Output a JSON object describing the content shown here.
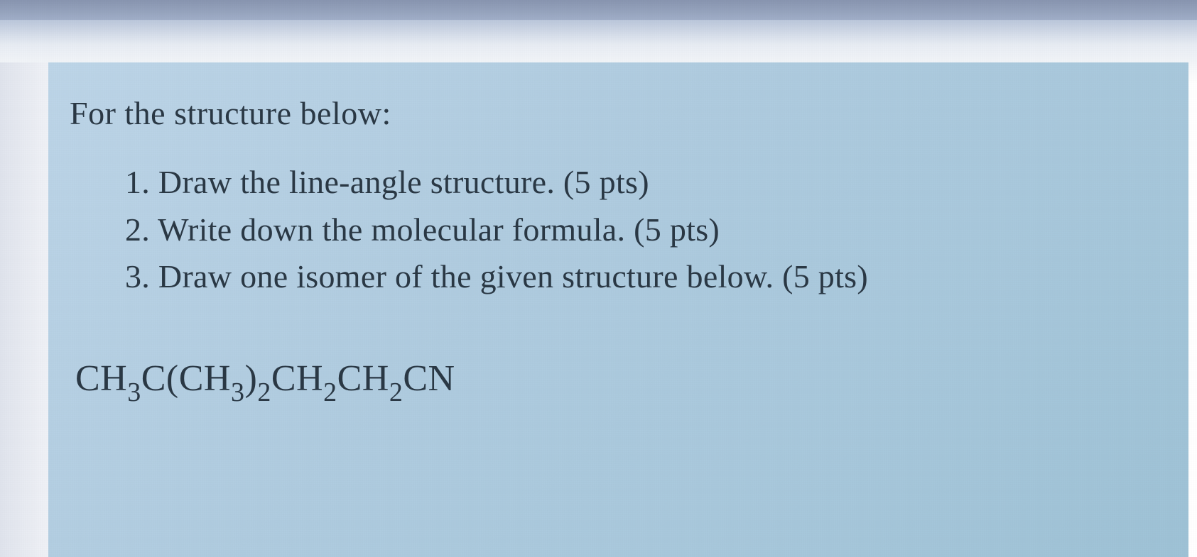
{
  "question": {
    "heading": "For the structure below:",
    "items": [
      {
        "number": "1.",
        "text": "Draw the line-angle structure. (5 pts)"
      },
      {
        "number": "2.",
        "text": "Write down the molecular formula. (5 pts)"
      },
      {
        "number": "3.",
        "text": "Draw one isomer of the given structure below. (5 pts)"
      }
    ],
    "formula": {
      "parts": [
        {
          "t": "CH",
          "sub": false
        },
        {
          "t": "3",
          "sub": true
        },
        {
          "t": "C(CH",
          "sub": false
        },
        {
          "t": "3",
          "sub": true
        },
        {
          "t": ")",
          "sub": false
        },
        {
          "t": "2",
          "sub": true
        },
        {
          "t": "CH",
          "sub": false
        },
        {
          "t": "2",
          "sub": true
        },
        {
          "t": "CH",
          "sub": false
        },
        {
          "t": "2",
          "sub": true
        },
        {
          "t": "CN",
          "sub": false
        }
      ]
    }
  },
  "styling": {
    "card_background": "#bdd5e8",
    "text_color": "#2a3845",
    "heading_fontsize": 46,
    "list_fontsize": 46,
    "formula_fontsize": 52,
    "font_family": "Georgia, Times New Roman, serif",
    "page_background": "#ffffff",
    "top_bar_color": "#8895b0"
  }
}
